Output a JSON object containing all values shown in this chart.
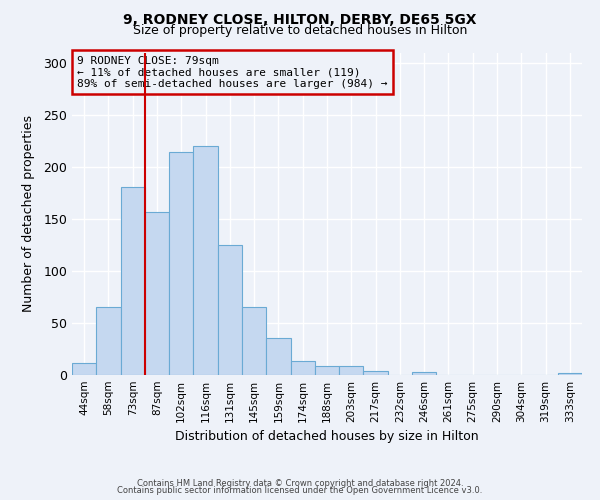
{
  "title1": "9, RODNEY CLOSE, HILTON, DERBY, DE65 5GX",
  "title2": "Size of property relative to detached houses in Hilton",
  "xlabel": "Distribution of detached houses by size in Hilton",
  "ylabel": "Number of detached properties",
  "bar_labels": [
    "44sqm",
    "58sqm",
    "73sqm",
    "87sqm",
    "102sqm",
    "116sqm",
    "131sqm",
    "145sqm",
    "159sqm",
    "174sqm",
    "188sqm",
    "203sqm",
    "217sqm",
    "232sqm",
    "246sqm",
    "261sqm",
    "275sqm",
    "290sqm",
    "304sqm",
    "319sqm",
    "333sqm"
  ],
  "bar_values": [
    12,
    65,
    181,
    157,
    214,
    220,
    125,
    65,
    36,
    13,
    9,
    9,
    4,
    0,
    3,
    0,
    0,
    0,
    0,
    0,
    2
  ],
  "bar_color": "#c5d8f0",
  "bar_edge_color": "#6aaad4",
  "marker_color": "#cc0000",
  "annotation_title": "9 RODNEY CLOSE: 79sqm",
  "annotation_line1": "← 11% of detached houses are smaller (119)",
  "annotation_line2": "89% of semi-detached houses are larger (984) →",
  "annotation_box_color": "#cc0000",
  "ylim": [
    0,
    310
  ],
  "yticks": [
    0,
    50,
    100,
    150,
    200,
    250,
    300
  ],
  "footer1": "Contains HM Land Registry data © Crown copyright and database right 2024.",
  "footer2": "Contains public sector information licensed under the Open Government Licence v3.0.",
  "bg_color": "#eef2f9"
}
